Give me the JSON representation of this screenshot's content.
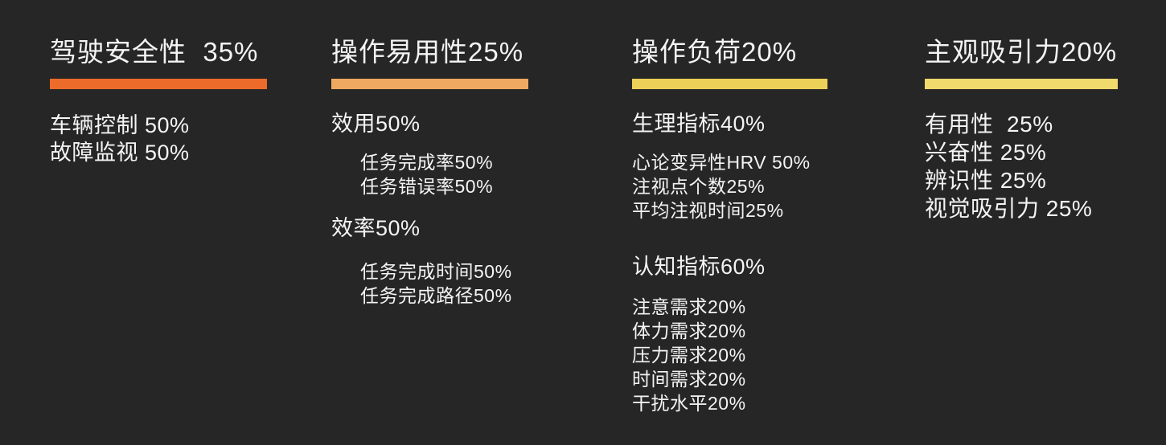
{
  "page": {
    "background_color": "#262626",
    "text_color": "#F4F4F4"
  },
  "columns": [
    {
      "title": "驾驶安全性  35%",
      "weight": "35%",
      "accent_color": "#EC6B2A",
      "items": [
        {
          "text": "车辆控制 50%",
          "level": 1
        },
        {
          "text": "故障监视 50%",
          "level": 1
        }
      ]
    },
    {
      "title": "操作易用性25%",
      "weight": "25%",
      "accent_color": "#F0A960",
      "items": [
        {
          "text": "效用50%",
          "level": 1
        },
        {
          "text": "任务完成率50%",
          "level": 2
        },
        {
          "text": "任务错误率50%",
          "level": 2
        },
        {
          "text": "效率50%",
          "level": 1
        },
        {
          "text": "任务完成时间50%",
          "level": 2
        },
        {
          "text": "任务完成路径50%",
          "level": 2
        }
      ]
    },
    {
      "title": "操作负荷20%",
      "weight": "20%",
      "accent_color": "#EDD058",
      "items": [
        {
          "text": "生理指标40%",
          "level": 1
        },
        {
          "text": "心论变异性HRV 50%",
          "level": 2
        },
        {
          "text": "注视点个数25%",
          "level": 2
        },
        {
          "text": "平均注视时间25%",
          "level": 2
        },
        {
          "text": "认知指标60%",
          "level": 1
        },
        {
          "text": "注意需求20%",
          "level": 2
        },
        {
          "text": "体力需求20%",
          "level": 2
        },
        {
          "text": "压力需求20%",
          "level": 2
        },
        {
          "text": "时间需求20%",
          "level": 2
        },
        {
          "text": "干扰水平20%",
          "level": 2
        }
      ]
    },
    {
      "title": "主观吸引力20%",
      "weight": "20%",
      "accent_color": "#F0D96D",
      "items": [
        {
          "text": "有用性  25%",
          "level": 1
        },
        {
          "text": "兴奋性 25%",
          "level": 1
        },
        {
          "text": "辨识性 25%",
          "level": 1
        },
        {
          "text": "视觉吸引力 25%",
          "level": 1
        }
      ]
    }
  ]
}
